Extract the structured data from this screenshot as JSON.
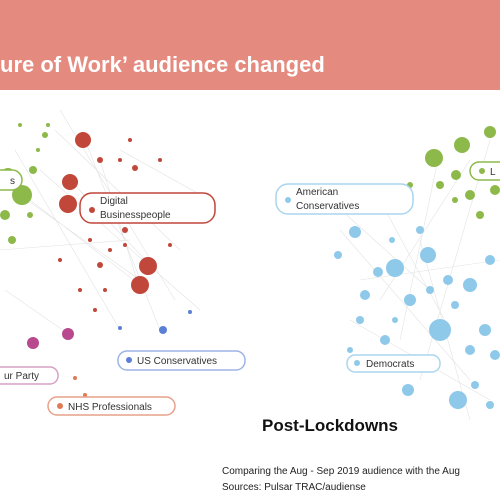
{
  "header": {
    "title": "ure of Work’ audience changed"
  },
  "left_network": {
    "labels": [
      {
        "lines": [
          "s"
        ]
      },
      {
        "lines": [
          "Digital",
          "Businesspeople"
        ]
      },
      {
        "lines": [
          "US Conservatives"
        ]
      },
      {
        "lines": [
          "ur Party"
        ]
      },
      {
        "lines": [
          "NHS Professionals"
        ]
      }
    ]
  },
  "right_network": {
    "title": "Post-Lockdowns",
    "labels": [
      {
        "lines": [
          "American",
          "Conservatives"
        ]
      },
      {
        "lines": [
          "Democrats"
        ]
      },
      {
        "lines": [
          "L"
        ]
      }
    ]
  },
  "footer": {
    "lines": [
      "Comparing the Aug - Sep 2019 audience with the Aug",
      "Sources: Pulsar TRAC/audiense"
    ]
  }
}
